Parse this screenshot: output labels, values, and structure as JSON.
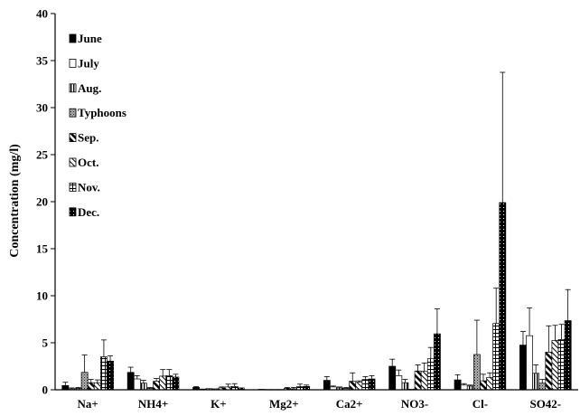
{
  "chart_data": {
    "type": "bar",
    "title": "",
    "xlabel": "",
    "ylabel": "Concentration (mg/l)",
    "ylim": [
      0,
      40
    ],
    "yticks": [
      0,
      5,
      10,
      15,
      20,
      25,
      30,
      35,
      40
    ],
    "legend_placement": "top-left",
    "grid": false,
    "categories": [
      "Na+",
      "NH4+",
      "K+",
      "Mg2+",
      "Ca2+",
      "NO3-",
      "Cl-",
      "SO42-"
    ],
    "series": [
      {
        "name": "June",
        "pattern": "solid-black",
        "values": [
          0.45,
          1.85,
          0.25,
          0.05,
          1.0,
          2.5,
          1.05,
          4.75
        ],
        "errors": [
          0.35,
          0.55,
          0.1,
          0.05,
          0.4,
          0.75,
          0.55,
          1.45
        ]
      },
      {
        "name": "July",
        "pattern": "white",
        "values": [
          0.1,
          1.15,
          0.08,
          0.03,
          0.3,
          1.5,
          0.5,
          5.75
        ],
        "errors": [
          0.1,
          0.35,
          0.05,
          0.05,
          0.1,
          0.6,
          0.15,
          2.95
        ]
      },
      {
        "name": "Aug.",
        "pattern": "vertical-lines",
        "values": [
          0.15,
          0.7,
          0.12,
          0.03,
          0.2,
          0.75,
          0.4,
          1.75
        ],
        "errors": [
          0.1,
          0.3,
          0.05,
          0.03,
          0.1,
          0.35,
          0.1,
          0.9
        ]
      },
      {
        "name": "Typhoons",
        "pattern": "dotted-gray",
        "values": [
          1.85,
          0.15,
          0.1,
          0.03,
          0.15,
          0.05,
          3.75,
          0.7
        ],
        "errors": [
          1.85,
          0.1,
          0.05,
          0.03,
          0.1,
          0.05,
          3.65,
          0.4
        ]
      },
      {
        "name": "Sep.",
        "pattern": "diagonal-thick",
        "values": [
          0.75,
          0.9,
          0.2,
          0.15,
          0.9,
          2.0,
          0.95,
          4.0
        ],
        "errors": [
          0.35,
          0.3,
          0.1,
          0.1,
          0.9,
          0.65,
          0.7,
          2.8
        ]
      },
      {
        "name": "Oct.",
        "pattern": "diagonal-thin",
        "values": [
          0.75,
          1.45,
          0.3,
          0.1,
          0.8,
          1.95,
          1.3,
          5.25
        ],
        "errors": [
          0.3,
          0.7,
          0.3,
          0.15,
          0.15,
          0.9,
          0.5,
          1.6
        ]
      },
      {
        "name": "Nov.",
        "pattern": "grid",
        "values": [
          3.5,
          1.5,
          0.35,
          0.35,
          1.1,
          3.3,
          7.05,
          5.35
        ],
        "errors": [
          1.8,
          0.65,
          0.3,
          0.25,
          0.3,
          1.2,
          3.75,
          1.6
        ]
      },
      {
        "name": "Dec.",
        "pattern": "black-dots",
        "values": [
          3.05,
          1.35,
          0.2,
          0.35,
          1.15,
          5.95,
          19.9,
          7.35
        ],
        "errors": [
          0.55,
          0.3,
          0.05,
          0.15,
          0.35,
          2.65,
          13.85,
          3.3
        ]
      }
    ]
  }
}
